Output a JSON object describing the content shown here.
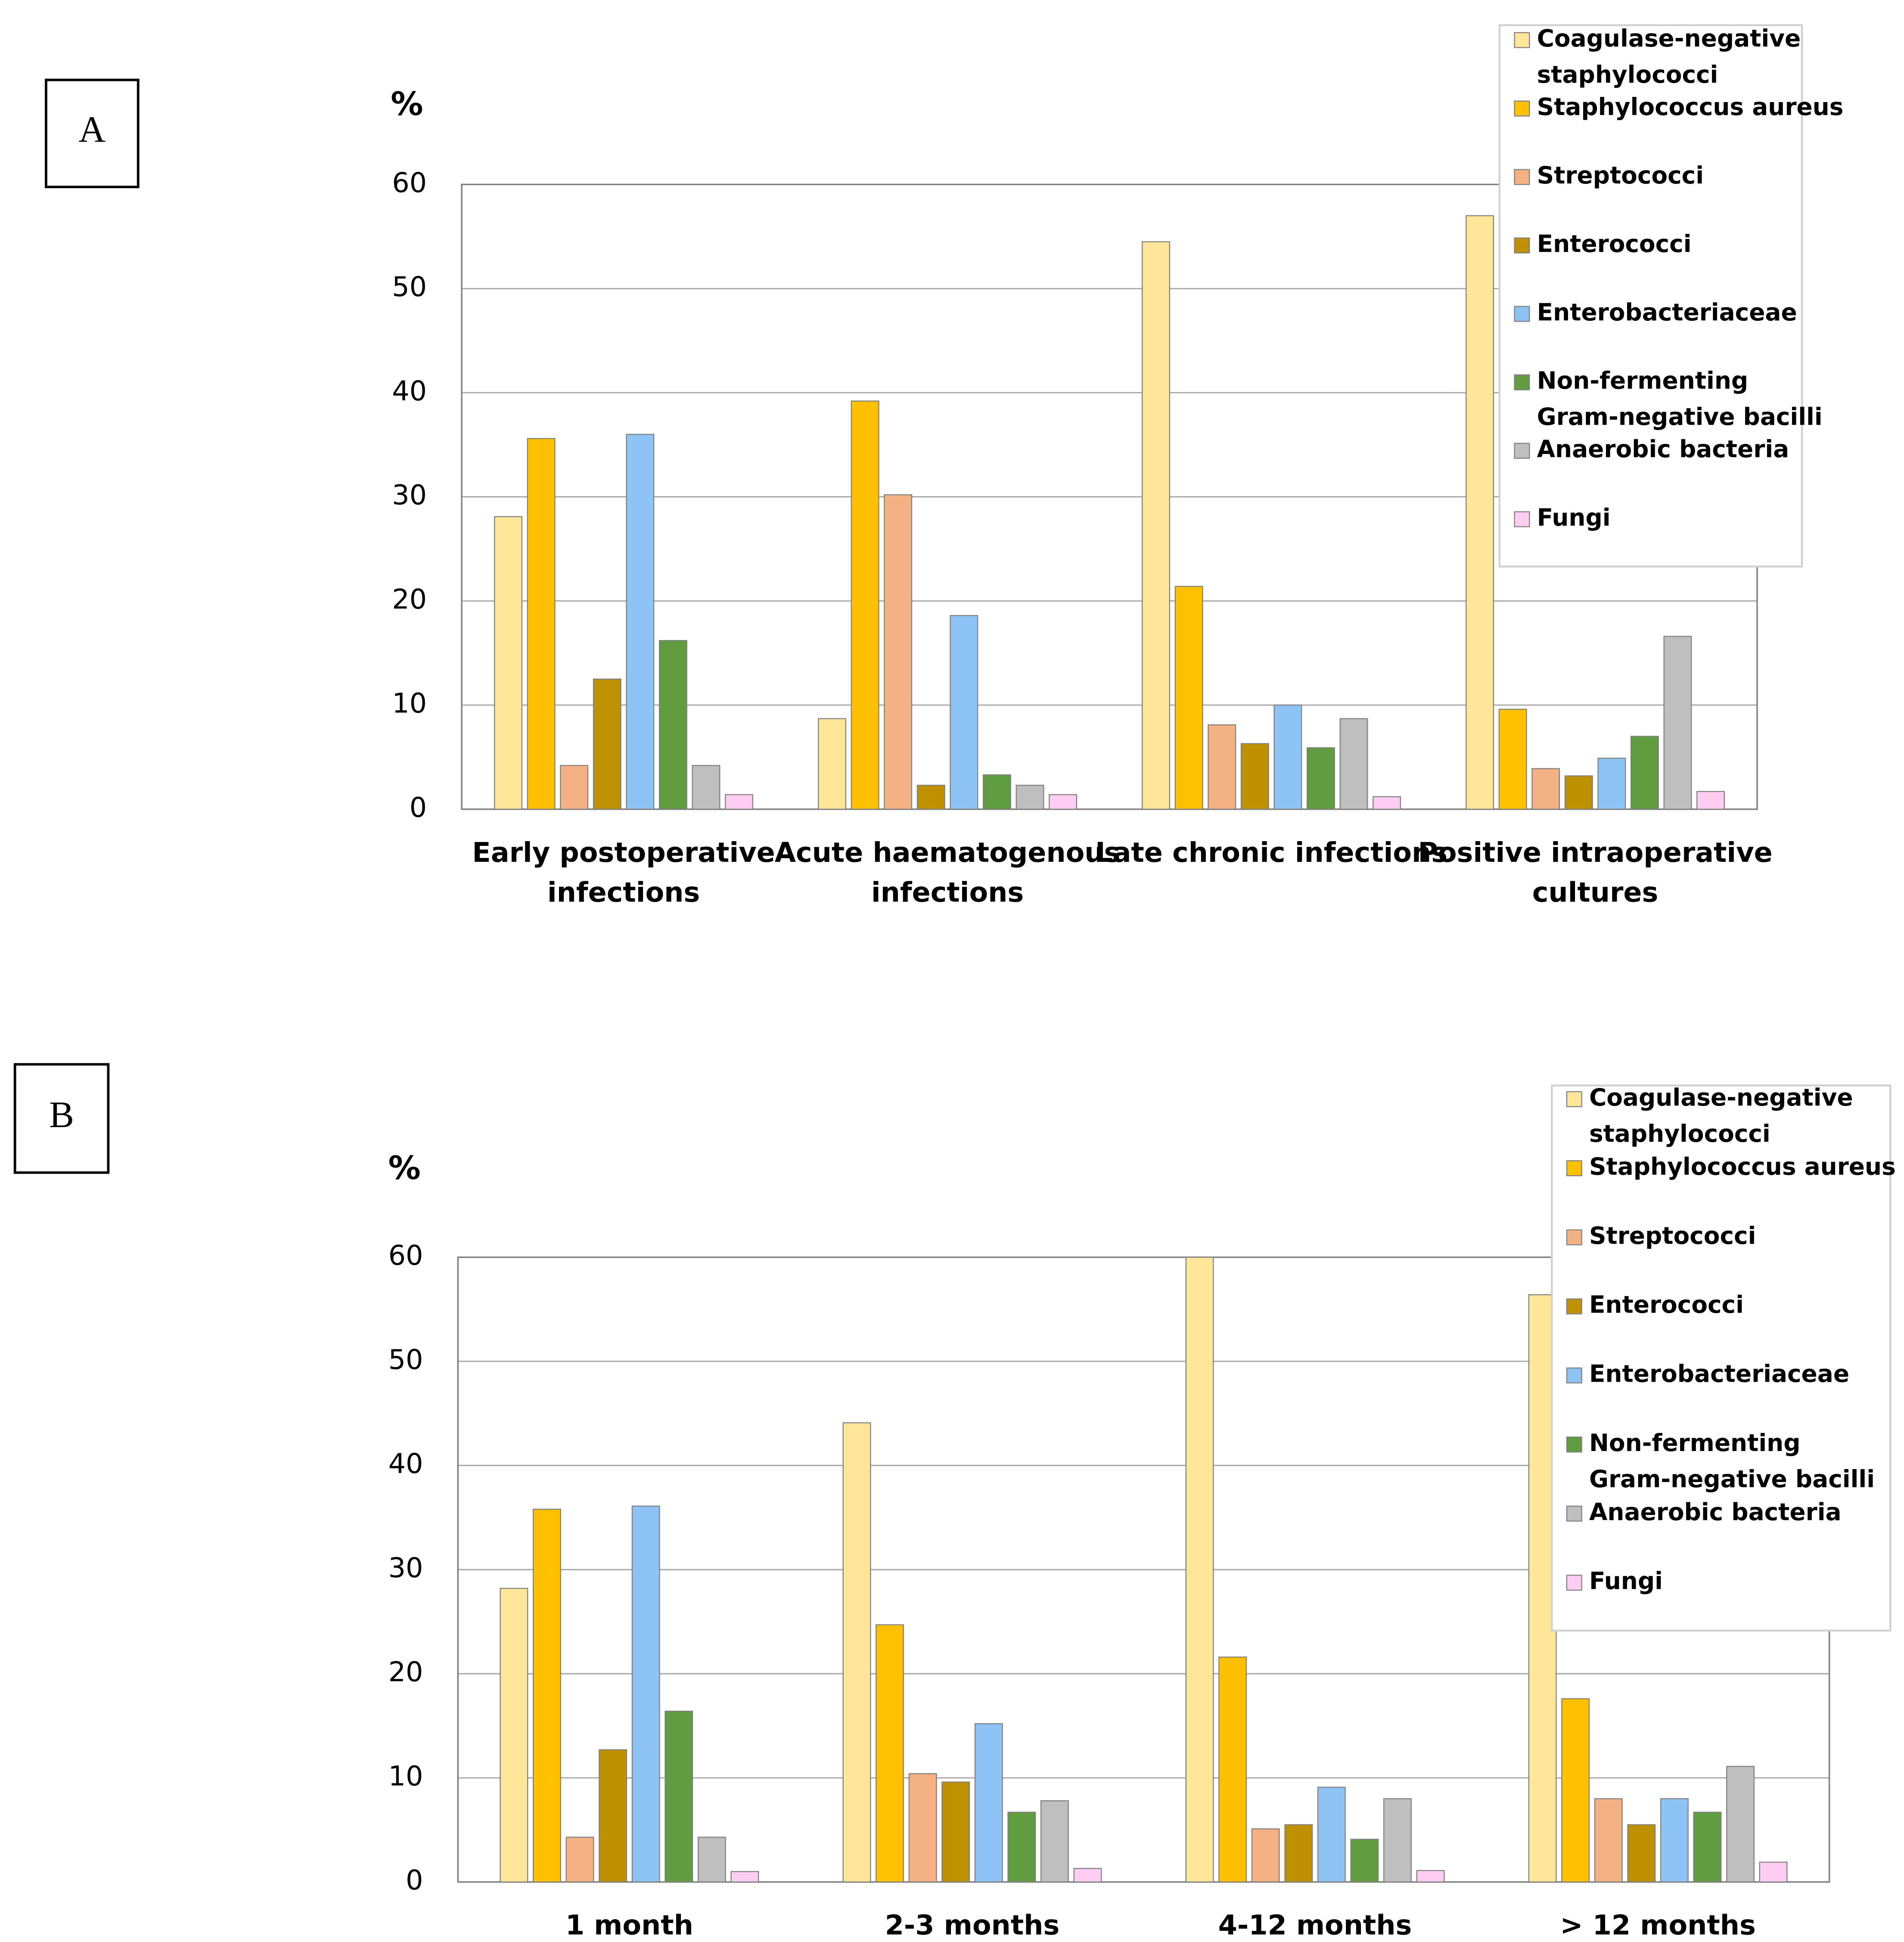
{
  "chart_data": [
    {
      "type": "bar",
      "panel": "A",
      "ylabel": "%",
      "categories": [
        "Early postoperative infections",
        "Acute haematogenous infections",
        "Late chronic infections",
        "Positive intraoperative cultures"
      ],
      "ylim": [
        0,
        60
      ],
      "yticks": [
        0,
        10,
        20,
        30,
        40,
        50,
        60
      ],
      "grid": true,
      "series": [
        {
          "name": "Coagulase-negative staphylococci",
          "color": "#ffe699",
          "values": [
            28.1,
            8.7,
            54.5,
            57
          ]
        },
        {
          "name": "Staphylococcus aureus",
          "color": "#ffc000",
          "values": [
            35.6,
            39.2,
            21.4,
            9.6
          ]
        },
        {
          "name": "Streptococci",
          "color": "#f4b183",
          "values": [
            4.2,
            30.2,
            8.1,
            3.9
          ]
        },
        {
          "name": "Enterococci",
          "color": "#bf9000",
          "values": [
            12.5,
            2.3,
            6.3,
            3.2
          ]
        },
        {
          "name": "Enterobacteriaceae",
          "color": "#8ec3f6",
          "values": [
            36,
            18.6,
            10,
            4.9
          ]
        },
        {
          "name": "Non-fermenting Gram-negative bacilli",
          "color": "#609c40",
          "values": [
            16.2,
            3.3,
            5.9,
            7
          ]
        },
        {
          "name": "Anaerobic bacteria",
          "color": "#bfbfbf",
          "values": [
            4.2,
            2.3,
            8.7,
            16.6
          ]
        },
        {
          "name": "Fungi",
          "color": "#ffccf2",
          "values": [
            1.4,
            1.4,
            1.2,
            1.7
          ]
        }
      ]
    },
    {
      "type": "bar",
      "panel": "B",
      "ylabel": "%",
      "categories": [
        "1 month",
        "2-3 months",
        "4-12 months",
        "> 12 months"
      ],
      "ylim": [
        0,
        60
      ],
      "yticks": [
        0,
        10,
        20,
        30,
        40,
        50,
        60
      ],
      "grid": true,
      "series": [
        {
          "name": "Coagulase-negative staphylococci",
          "color": "#ffe699",
          "values": [
            28.2,
            44.1,
            60,
            56.4
          ]
        },
        {
          "name": "Staphylococcus aureus",
          "color": "#ffc000",
          "values": [
            35.8,
            24.7,
            21.6,
            17.6
          ]
        },
        {
          "name": "Streptococci",
          "color": "#f4b183",
          "values": [
            4.3,
            10.4,
            5.1,
            8
          ]
        },
        {
          "name": "Enterococci",
          "color": "#bf9000",
          "values": [
            12.7,
            9.6,
            5.5,
            5.5
          ]
        },
        {
          "name": "Enterobacteriaceae",
          "color": "#8ec3f6",
          "values": [
            36.1,
            15.2,
            9.1,
            8
          ]
        },
        {
          "name": "Non-fermenting Gram-negative bacilli",
          "color": "#609c40",
          "values": [
            16.4,
            6.7,
            4.1,
            6.7
          ]
        },
        {
          "name": "Anaerobic bacteria",
          "color": "#bfbfbf",
          "values": [
            4.3,
            7.8,
            8,
            11.1
          ]
        },
        {
          "name": "Fungi",
          "color": "#ffccf2",
          "values": [
            1.0,
            1.3,
            1.1,
            1.9
          ]
        }
      ]
    }
  ]
}
